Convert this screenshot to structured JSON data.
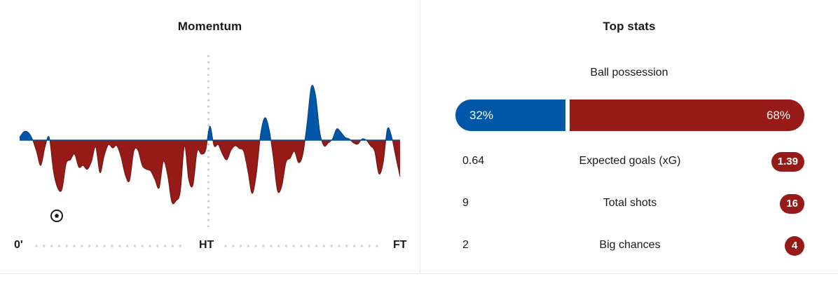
{
  "momentum": {
    "title": "Momentum",
    "timeline": {
      "start": "0'",
      "half": "HT",
      "end": "FT"
    },
    "home_color": "#0057a8",
    "away_color": "#961a17",
    "events": [
      {
        "type": "goal",
        "icon": "football-icon",
        "team": "home"
      }
    ]
  },
  "top_stats": {
    "title": "Top stats",
    "possession": {
      "label": "Ball possession",
      "home": "32%",
      "away": "68%",
      "home_value": 32,
      "away_value": 68
    },
    "rows": [
      {
        "label": "Expected goals (xG)",
        "home": "0.64",
        "away": "1.39"
      },
      {
        "label": "Total shots",
        "home": "9",
        "away": "16"
      },
      {
        "label": "Big chances",
        "home": "2",
        "away": "4"
      }
    ]
  },
  "chart_data": {
    "type": "area",
    "xlabel": "",
    "ylabel": "",
    "xlim": [
      0,
      90
    ],
    "ylim": [
      -100,
      100
    ],
    "series": [
      {
        "x": [
          0,
          1,
          2,
          3,
          4,
          5,
          6,
          7,
          8,
          9,
          10,
          11,
          12,
          13,
          14,
          15,
          16,
          17,
          18,
          19,
          20,
          21,
          22,
          23,
          24,
          25,
          26,
          27,
          28,
          29,
          30,
          31,
          32,
          33,
          34,
          35,
          36,
          37,
          38,
          39,
          40,
          41,
          42,
          43,
          44,
          45,
          46,
          47,
          48,
          49,
          50,
          51,
          52,
          53,
          54,
          55,
          56,
          57,
          58,
          59,
          60,
          61,
          62,
          63,
          64,
          65,
          66,
          67,
          68,
          69,
          70,
          71,
          72,
          73,
          74,
          75,
          76,
          77,
          78,
          79,
          80,
          81,
          82,
          83,
          84,
          85,
          86,
          87,
          88,
          89,
          90
        ],
        "values": [
          5,
          15,
          14,
          2,
          -20,
          -45,
          -12,
          5,
          -55,
          -85,
          -88,
          -42,
          -35,
          -25,
          -48,
          -45,
          -52,
          -38,
          -12,
          -58,
          -28,
          -8,
          -14,
          -10,
          -30,
          -62,
          -72,
          -20,
          -18,
          -45,
          -52,
          -55,
          -70,
          -85,
          -38,
          -62,
          -110,
          -108,
          -92,
          -10,
          -70,
          -80,
          -20,
          -25,
          -18,
          25,
          -10,
          -8,
          -25,
          -35,
          -18,
          -10,
          -15,
          -20,
          -55,
          -95,
          -60,
          10,
          40,
          20,
          -30,
          -90,
          -82,
          -40,
          -32,
          -20,
          -40,
          -25,
          30,
          95,
          80,
          15,
          -10,
          -5,
          2,
          20,
          14,
          5,
          2,
          -5,
          -7,
          2,
          0,
          -10,
          -20,
          -60,
          -40,
          20,
          6,
          -30,
          -65
        ]
      }
    ]
  }
}
